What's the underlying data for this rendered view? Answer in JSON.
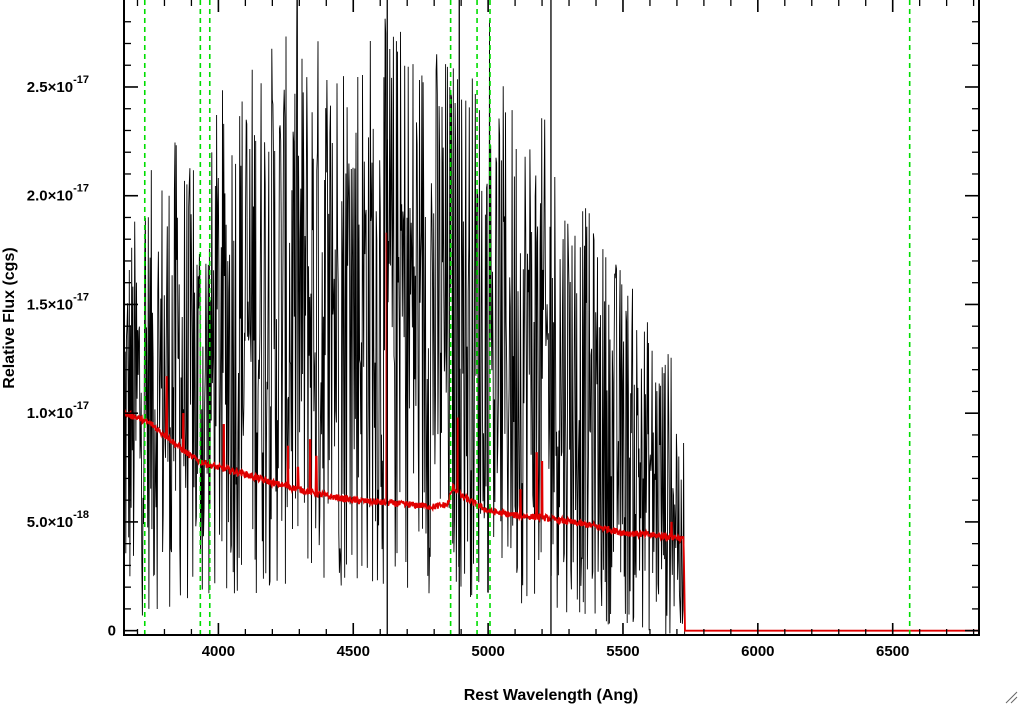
{
  "chart_data": {
    "type": "line",
    "title": "",
    "xlabel": "Rest Wavelength (Ang)",
    "ylabel": "Relative Flux (cgs)",
    "xlim": [
      3650,
      6820
    ],
    "ylim": [
      -2e-19,
      2.9e-17
    ],
    "x_ticks": [
      {
        "value": 4000,
        "label": "4000"
      },
      {
        "value": 4500,
        "label": "4500"
      },
      {
        "value": 5000,
        "label": "5000"
      },
      {
        "value": 5500,
        "label": "5500"
      },
      {
        "value": 6000,
        "label": "6000"
      },
      {
        "value": 6500,
        "label": "6500"
      }
    ],
    "y_ticks": [
      {
        "value": 0,
        "label": "0",
        "mantissa": "0",
        "exponent": ""
      },
      {
        "value": 5e-18,
        "label": "5.0×10⁻¹⁸",
        "mantissa": "5.0×10",
        "exponent": "-18"
      },
      {
        "value": 1e-17,
        "label": "1.0×10⁻¹⁷",
        "mantissa": "1.0×10",
        "exponent": "-17"
      },
      {
        "value": 1.5e-17,
        "label": "1.5×10⁻¹⁷",
        "mantissa": "1.5×10",
        "exponent": "-17"
      },
      {
        "value": 2e-17,
        "label": "2.0×10⁻¹⁷",
        "mantissa": "2.0×10",
        "exponent": "-17"
      },
      {
        "value": 2.5e-17,
        "label": "2.5×10⁻¹⁷",
        "mantissa": "2.5×10",
        "exponent": "-17"
      }
    ],
    "grid": false,
    "legend": "none",
    "series": [
      {
        "color": "#000000",
        "style": "noisy-spectrum",
        "x": [
          3650,
          3700,
          3750,
          3800,
          3850,
          3900,
          3950,
          4000,
          4100,
          4200,
          4300,
          4400,
          4500,
          4600,
          4700,
          4800,
          4900,
          5000,
          5100,
          5200,
          5300,
          5400,
          5500,
          5600,
          5700,
          5720,
          5730
        ],
        "y": [
          9.5e-18,
          1e-17,
          1.1e-17,
          1.15e-17,
          1.2e-17,
          1.1e-17,
          1.05e-17,
          1.3e-17,
          1.4e-17,
          1.45e-17,
          1.45e-17,
          1.5e-17,
          1.5e-17,
          1.5e-17,
          1.5e-17,
          1.45e-17,
          1.4e-17,
          1.35e-17,
          1.3e-17,
          1.25e-17,
          1.1e-17,
          9.5e-18,
          8.5e-18,
          7e-18,
          6e-18,
          2e-18,
          0.0
        ]
      },
      {
        "color": "#e00000",
        "style": "model-continuum",
        "x": [
          3650,
          3700,
          3750,
          3800,
          3850,
          3900,
          3950,
          4000,
          4100,
          4200,
          4300,
          4400,
          4500,
          4600,
          4700,
          4800,
          4850,
          4870,
          4900,
          5000,
          5100,
          5200,
          5300,
          5400,
          5500,
          5600,
          5700,
          5725,
          5730,
          5740,
          5800,
          6000,
          6500,
          6820
        ],
        "y": [
          1e-17,
          9.8e-18,
          9.5e-18,
          9e-18,
          8.5e-18,
          8e-18,
          7.7e-18,
          7.5e-18,
          7.2e-18,
          6.8e-18,
          6.5e-18,
          6.2e-18,
          6e-18,
          5.9e-18,
          5.8e-18,
          5.7e-18,
          5.8e-18,
          6.6e-18,
          6.2e-18,
          5.5e-18,
          5.3e-18,
          5.2e-18,
          5e-18,
          4.8e-18,
          4.5e-18,
          4.4e-18,
          4.3e-18,
          4.2e-18,
          0.0,
          0.0,
          0.0,
          0.0,
          0.0,
          0.0
        ]
      }
    ],
    "emission_spikes": [
      {
        "x": 3808,
        "y": 1.17e-17
      },
      {
        "x": 3870,
        "y": 1e-17
      },
      {
        "x": 4020,
        "y": 9.5e-18
      },
      {
        "x": 4258,
        "y": 8.5e-18
      },
      {
        "x": 4295,
        "y": 7.5e-18
      },
      {
        "x": 4340,
        "y": 8.8e-18
      },
      {
        "x": 4363,
        "y": 8e-18
      },
      {
        "x": 4624,
        "y": 1.83e-17
      },
      {
        "x": 4888,
        "y": 9.8e-18
      },
      {
        "x": 5120,
        "y": 6.5e-18
      },
      {
        "x": 5180,
        "y": 8.2e-18
      },
      {
        "x": 5200,
        "y": 7.8e-18
      },
      {
        "x": 5680,
        "y": 5e-18
      }
    ],
    "vertical_lines": [
      {
        "x": 3727,
        "color": "#00dd00",
        "style": "dashed"
      },
      {
        "x": 3933,
        "color": "#00dd00",
        "style": "dashed"
      },
      {
        "x": 3968,
        "color": "#00dd00",
        "style": "dashed"
      },
      {
        "x": 4861,
        "color": "#00dd00",
        "style": "dashed"
      },
      {
        "x": 4959,
        "color": "#00dd00",
        "style": "dashed"
      },
      {
        "x": 5007,
        "color": "#00dd00",
        "style": "dashed"
      },
      {
        "x": 6563,
        "color": "#00dd00",
        "style": "dashed"
      },
      {
        "x": 4626,
        "color": "#000000",
        "style": "solid"
      },
      {
        "x": 4893,
        "color": "#000000",
        "style": "solid"
      },
      {
        "x": 5233,
        "color": "#000000",
        "style": "solid"
      }
    ]
  },
  "colors": {
    "axes": "#000000",
    "spectrum": "#000000",
    "model": "#e00000",
    "lines": "#00dd00",
    "background": "#ffffff"
  },
  "window": {
    "resize_grip_icon": "resize-grip-icon"
  }
}
